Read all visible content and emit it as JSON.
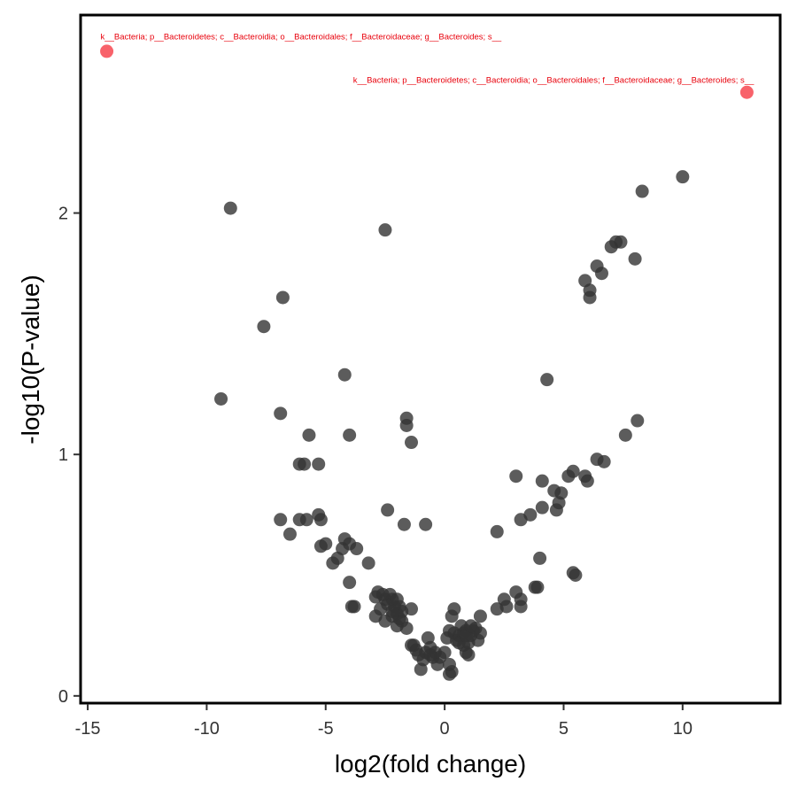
{
  "chart_data": {
    "type": "scatter",
    "title": "",
    "xlabel": "log2(fold change)",
    "ylabel": "-log10(P-value)",
    "xlim": [
      -15.3,
      14.1
    ],
    "ylim": [
      -0.03,
      2.82
    ],
    "x_ticks": [
      -15,
      -10,
      -5,
      0,
      5,
      10
    ],
    "x_tick_labels": [
      "-15",
      "-10",
      "-5",
      "0",
      "5",
      "10"
    ],
    "y_ticks": [
      0,
      1,
      2
    ],
    "y_tick_labels": [
      "0",
      "1",
      "2"
    ],
    "grid": false,
    "colors": {
      "default_point": "#333333",
      "highlight_point": "#f8626a",
      "annotation_text": "#e8000b",
      "frame": "#000000"
    },
    "annotations": [
      {
        "text": "k__Bacteria; p__Bacteroidetes; c__Bacteroidia; o__Bacteroidales; f__Bacteroidaceae; g__Bacteroides; s__",
        "x": -14.2,
        "y": 2.72
      },
      {
        "text": "k__Bacteria; p__Bacteroidetes; c__Bacteroidia; o__Bacteroidales; f__Bacteroidaceae; g__Bacteroides; s__",
        "x": 12.7,
        "y": 2.54
      }
    ],
    "highlighted": [
      {
        "x": -14.2,
        "y": 2.67
      },
      {
        "x": 12.7,
        "y": 2.5
      }
    ],
    "points": [
      {
        "x": 10.0,
        "y": 2.15
      },
      {
        "x": 8.3,
        "y": 2.09
      },
      {
        "x": 7.2,
        "y": 1.88
      },
      {
        "x": 7.0,
        "y": 1.86
      },
      {
        "x": 7.4,
        "y": 1.88
      },
      {
        "x": 8.0,
        "y": 1.81
      },
      {
        "x": 6.4,
        "y": 1.78
      },
      {
        "x": 6.6,
        "y": 1.75
      },
      {
        "x": 5.9,
        "y": 1.72
      },
      {
        "x": 6.1,
        "y": 1.68
      },
      {
        "x": 6.1,
        "y": 1.65
      },
      {
        "x": 4.3,
        "y": 1.31
      },
      {
        "x": 8.1,
        "y": 1.14
      },
      {
        "x": 7.6,
        "y": 1.08
      },
      {
        "x": 6.4,
        "y": 0.98
      },
      {
        "x": 6.7,
        "y": 0.97
      },
      {
        "x": 5.4,
        "y": 0.93
      },
      {
        "x": 5.2,
        "y": 0.91
      },
      {
        "x": 5.9,
        "y": 0.91
      },
      {
        "x": 6.0,
        "y": 0.89
      },
      {
        "x": 3.0,
        "y": 0.91
      },
      {
        "x": 4.1,
        "y": 0.89
      },
      {
        "x": 4.6,
        "y": 0.85
      },
      {
        "x": 4.9,
        "y": 0.84
      },
      {
        "x": 4.8,
        "y": 0.8
      },
      {
        "x": 4.7,
        "y": 0.77
      },
      {
        "x": 4.1,
        "y": 0.78
      },
      {
        "x": 3.6,
        "y": 0.75
      },
      {
        "x": 3.2,
        "y": 0.73
      },
      {
        "x": 2.2,
        "y": 0.68
      },
      {
        "x": 4.0,
        "y": 0.57
      },
      {
        "x": 5.4,
        "y": 0.51
      },
      {
        "x": 5.5,
        "y": 0.5
      },
      {
        "x": 3.9,
        "y": 0.45
      },
      {
        "x": 3.8,
        "y": 0.45
      },
      {
        "x": 3.0,
        "y": 0.43
      },
      {
        "x": 2.5,
        "y": 0.4
      },
      {
        "x": 2.6,
        "y": 0.37
      },
      {
        "x": 3.2,
        "y": 0.37
      },
      {
        "x": 3.2,
        "y": 0.4
      },
      {
        "x": 2.2,
        "y": 0.36
      },
      {
        "x": 1.5,
        "y": 0.33
      },
      {
        "x": 1.3,
        "y": 0.28
      },
      {
        "x": 1.5,
        "y": 0.26
      },
      {
        "x": 1.4,
        "y": 0.23
      },
      {
        "x": 1.1,
        "y": 0.25
      },
      {
        "x": 0.9,
        "y": 0.27
      },
      {
        "x": 0.7,
        "y": 0.29
      },
      {
        "x": 0.6,
        "y": 0.25
      },
      {
        "x": 0.5,
        "y": 0.23
      },
      {
        "x": 0.4,
        "y": 0.26
      },
      {
        "x": 0.2,
        "y": 0.27
      },
      {
        "x": 0.3,
        "y": 0.33
      },
      {
        "x": 0.4,
        "y": 0.36
      },
      {
        "x": 0.8,
        "y": 0.21
      },
      {
        "x": 0.9,
        "y": 0.18
      },
      {
        "x": 1.0,
        "y": 0.17
      },
      {
        "x": 0.2,
        "y": 0.13
      },
      {
        "x": 0.3,
        "y": 0.1
      },
      {
        "x": 0.2,
        "y": 0.09
      },
      {
        "x": 0.0,
        "y": 0.18
      },
      {
        "x": -0.2,
        "y": 0.16
      },
      {
        "x": -0.3,
        "y": 0.13
      },
      {
        "x": -0.5,
        "y": 0.16
      },
      {
        "x": -0.6,
        "y": 0.2
      },
      {
        "x": -0.7,
        "y": 0.24
      },
      {
        "x": -0.8,
        "y": 0.18
      },
      {
        "x": -0.9,
        "y": 0.15
      },
      {
        "x": -1.0,
        "y": 0.11
      },
      {
        "x": -1.1,
        "y": 0.17
      },
      {
        "x": -1.2,
        "y": 0.19
      },
      {
        "x": -1.4,
        "y": 0.21
      },
      {
        "x": -1.3,
        "y": 0.21
      },
      {
        "x": -1.6,
        "y": 0.28
      },
      {
        "x": -1.8,
        "y": 0.31
      },
      {
        "x": -2.0,
        "y": 0.29
      },
      {
        "x": -1.9,
        "y": 0.32
      },
      {
        "x": -1.8,
        "y": 0.35
      },
      {
        "x": -2.0,
        "y": 0.34
      },
      {
        "x": -2.1,
        "y": 0.37
      },
      {
        "x": -2.2,
        "y": 0.4
      },
      {
        "x": -2.3,
        "y": 0.42
      },
      {
        "x": -2.4,
        "y": 0.38
      },
      {
        "x": -2.5,
        "y": 0.4
      },
      {
        "x": -2.6,
        "y": 0.42
      },
      {
        "x": -2.8,
        "y": 0.43
      },
      {
        "x": -2.9,
        "y": 0.41
      },
      {
        "x": -2.7,
        "y": 0.36
      },
      {
        "x": -2.9,
        "y": 0.33
      },
      {
        "x": -2.2,
        "y": 0.33
      },
      {
        "x": -1.4,
        "y": 0.36
      },
      {
        "x": -1.9,
        "y": 0.37
      },
      {
        "x": -2.0,
        "y": 0.4
      },
      {
        "x": -2.2,
        "y": 0.35
      },
      {
        "x": -2.5,
        "y": 0.31
      },
      {
        "x": -3.8,
        "y": 0.37
      },
      {
        "x": -3.9,
        "y": 0.37
      },
      {
        "x": -4.0,
        "y": 0.47
      },
      {
        "x": -3.2,
        "y": 0.55
      },
      {
        "x": -4.7,
        "y": 0.55
      },
      {
        "x": -4.5,
        "y": 0.57
      },
      {
        "x": -4.3,
        "y": 0.61
      },
      {
        "x": -3.7,
        "y": 0.61
      },
      {
        "x": -4.0,
        "y": 0.63
      },
      {
        "x": -4.2,
        "y": 0.65
      },
      {
        "x": -5.0,
        "y": 0.63
      },
      {
        "x": -5.2,
        "y": 0.62
      },
      {
        "x": -5.3,
        "y": 0.75
      },
      {
        "x": -5.2,
        "y": 0.73
      },
      {
        "x": -5.8,
        "y": 0.73
      },
      {
        "x": -6.1,
        "y": 0.73
      },
      {
        "x": -6.9,
        "y": 0.73
      },
      {
        "x": -6.5,
        "y": 0.67
      },
      {
        "x": -2.4,
        "y": 0.77
      },
      {
        "x": -1.7,
        "y": 0.71
      },
      {
        "x": -0.8,
        "y": 0.71
      },
      {
        "x": -6.1,
        "y": 0.96
      },
      {
        "x": -5.9,
        "y": 0.96
      },
      {
        "x": -5.3,
        "y": 0.96
      },
      {
        "x": -5.7,
        "y": 1.08
      },
      {
        "x": -4.0,
        "y": 1.08
      },
      {
        "x": -6.9,
        "y": 1.17
      },
      {
        "x": -9.4,
        "y": 1.23
      },
      {
        "x": -1.6,
        "y": 1.15
      },
      {
        "x": -1.6,
        "y": 1.12
      },
      {
        "x": -1.4,
        "y": 1.05
      },
      {
        "x": -4.2,
        "y": 1.33
      },
      {
        "x": -7.6,
        "y": 1.53
      },
      {
        "x": -6.8,
        "y": 1.65
      },
      {
        "x": -9.0,
        "y": 2.02
      },
      {
        "x": -2.5,
        "y": 1.93
      },
      {
        "x": 0.8,
        "y": 0.26
      },
      {
        "x": 1.2,
        "y": 0.27
      },
      {
        "x": 1.0,
        "y": 0.22
      },
      {
        "x": 0.6,
        "y": 0.22
      },
      {
        "x": 0.1,
        "y": 0.24
      },
      {
        "x": -0.4,
        "y": 0.18
      },
      {
        "x": -0.6,
        "y": 0.17
      },
      {
        "x": 0.9,
        "y": 0.25
      },
      {
        "x": 1.1,
        "y": 0.29
      }
    ]
  }
}
